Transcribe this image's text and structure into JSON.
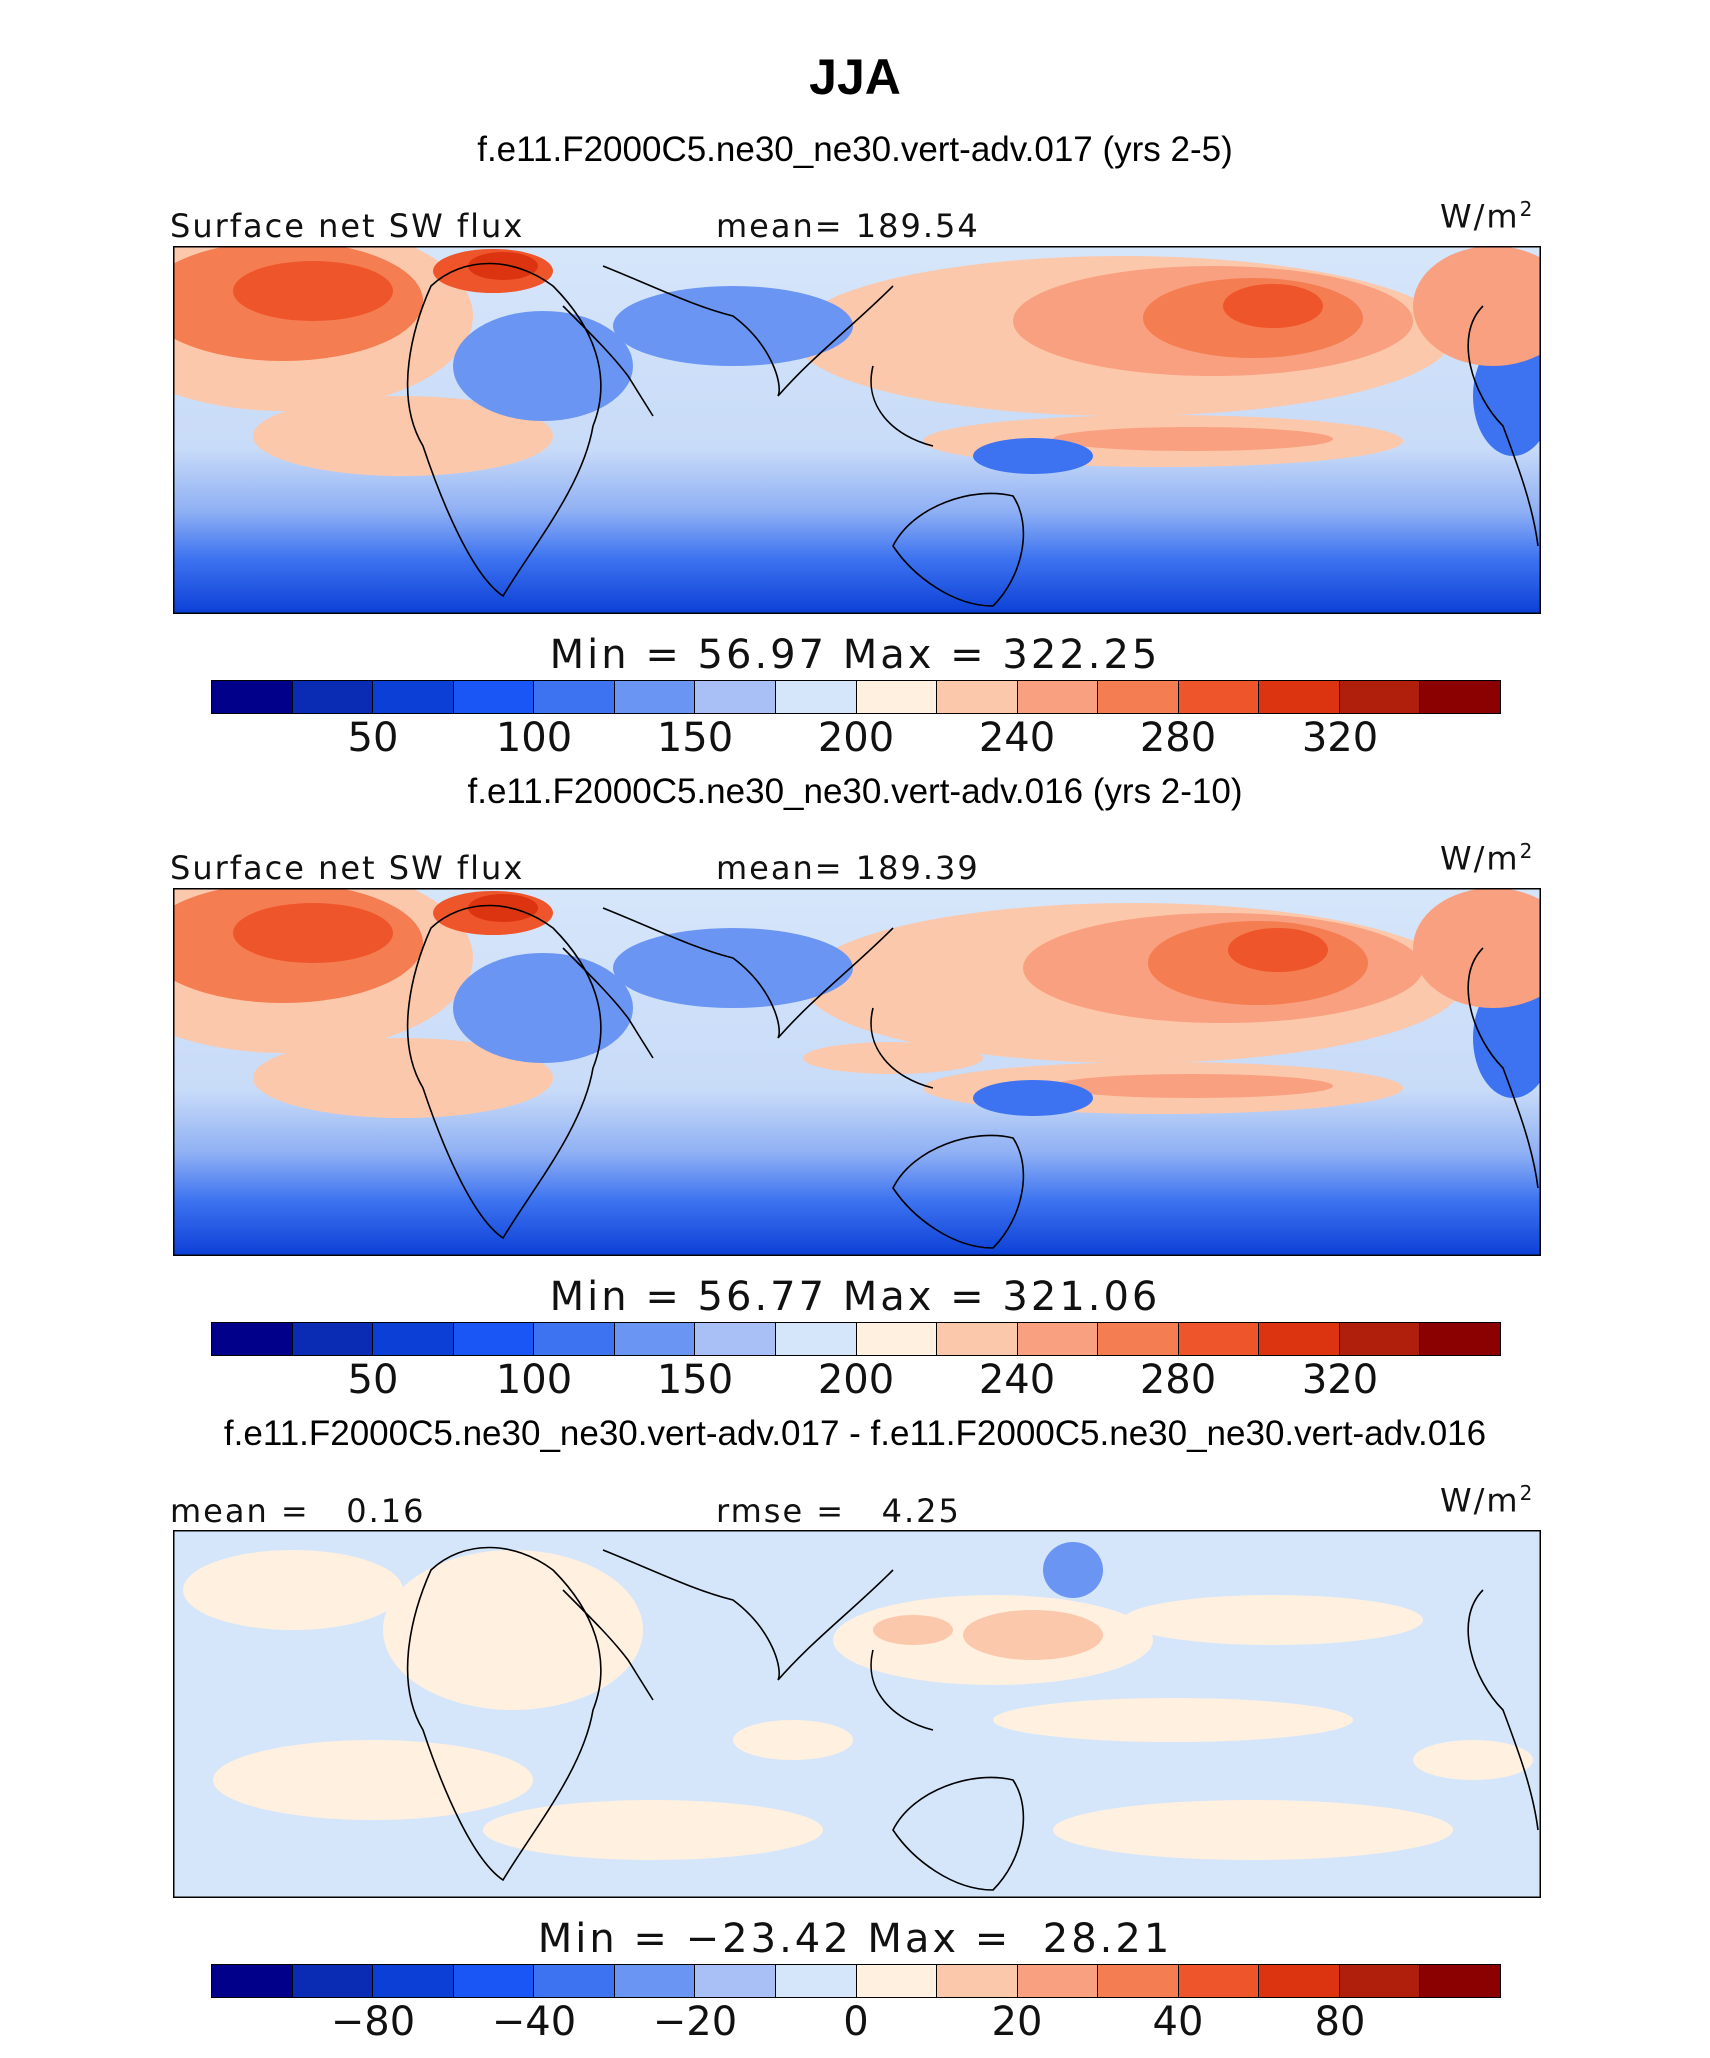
{
  "title": "JJA",
  "colorbar_colors": [
    "#00008b",
    "#0a2cb4",
    "#0c3fd6",
    "#1a55f5",
    "#3d73f0",
    "#6b95f2",
    "#a8c0f5",
    "#d6e6fa",
    "#fff0e0",
    "#fcc8ac",
    "#f9a080",
    "#f47d51",
    "#ee552a",
    "#dc3411",
    "#b01f0c",
    "#8b0000"
  ],
  "chart_data": [
    {
      "type": "heatmap",
      "case_title": "f.e11.F2000C5.ne30_ne30.vert-adv.017 (yrs 2-5)",
      "left_label": "Surface net SW flux",
      "center_label": "mean= 189.54",
      "units": "W/m",
      "units_sup": "2",
      "min_max_text": "Min =  56.97 Max = 322.25",
      "stats": {
        "mean": 189.54,
        "min": 56.97,
        "max": 322.25
      },
      "colorbar_ticks": [
        "50",
        "100",
        "150",
        "200",
        "240",
        "280",
        "320"
      ],
      "colorbar_levels": [
        25,
        50,
        75,
        100,
        125,
        150,
        175,
        200,
        220,
        240,
        260,
        280,
        300,
        320,
        340
      ]
    },
    {
      "type": "heatmap",
      "case_title": "f.e11.F2000C5.ne30_ne30.vert-adv.016 (yrs 2-10)",
      "left_label": "Surface net SW flux",
      "center_label": "mean= 189.39",
      "units": "W/m",
      "units_sup": "2",
      "min_max_text": "Min =  56.77 Max = 321.06",
      "stats": {
        "mean": 189.39,
        "min": 56.77,
        "max": 321.06
      },
      "colorbar_ticks": [
        "50",
        "100",
        "150",
        "200",
        "240",
        "280",
        "320"
      ],
      "colorbar_levels": [
        25,
        50,
        75,
        100,
        125,
        150,
        175,
        200,
        220,
        240,
        260,
        280,
        300,
        320,
        340
      ]
    },
    {
      "type": "heatmap",
      "case_title": "f.e11.F2000C5.ne30_ne30.vert-adv.017 - f.e11.F2000C5.ne30_ne30.vert-adv.016",
      "left_label": "mean =   0.16",
      "center_label": "rmse =   4.25",
      "units": "W/m",
      "units_sup": "2",
      "min_max_text": "Min = −23.42 Max =  28.21",
      "stats": {
        "mean": 0.16,
        "rmse": 4.25,
        "min": -23.42,
        "max": 28.21
      },
      "colorbar_ticks": [
        "−80",
        "−40",
        "−20",
        "0",
        "20",
        "40",
        "80"
      ],
      "colorbar_levels": [
        -100,
        -80,
        -60,
        -40,
        -30,
        -20,
        -10,
        0,
        10,
        20,
        30,
        40,
        60,
        80,
        100
      ]
    }
  ]
}
